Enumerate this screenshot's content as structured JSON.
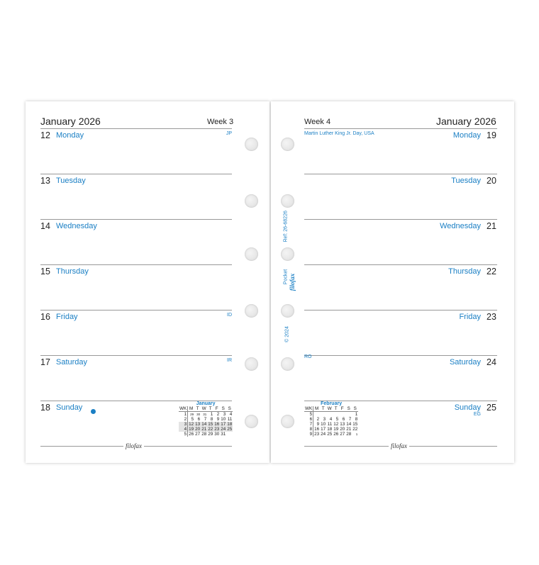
{
  "left": {
    "month": "January 2026",
    "week": "Week 3",
    "days": [
      {
        "num": "12",
        "name": "Monday",
        "note": "JP"
      },
      {
        "num": "13",
        "name": "Tuesday",
        "note": ""
      },
      {
        "num": "14",
        "name": "Wednesday",
        "note": ""
      },
      {
        "num": "15",
        "name": "Thursday",
        "note": ""
      },
      {
        "num": "16",
        "name": "Friday",
        "note": "ID"
      },
      {
        "num": "17",
        "name": "Saturday",
        "note": "IR"
      },
      {
        "num": "18",
        "name": "Sunday",
        "note": ""
      }
    ],
    "calendar": {
      "title": "January",
      "head": [
        "WK",
        "M",
        "T",
        "W",
        "T",
        "F",
        "S",
        "S"
      ],
      "rows": [
        [
          "1",
          "29",
          "30",
          "31",
          "1",
          "2",
          "3",
          "4"
        ],
        [
          "2",
          "5",
          "6",
          "7",
          "8",
          "9",
          "10",
          "11"
        ],
        [
          "3",
          "12",
          "13",
          "14",
          "15",
          "16",
          "17",
          "18"
        ],
        [
          "4",
          "19",
          "20",
          "21",
          "22",
          "23",
          "24",
          "25"
        ],
        [
          "5",
          "26",
          "27",
          "28",
          "29",
          "30",
          "31",
          ""
        ]
      ]
    },
    "logo": "filofax"
  },
  "right": {
    "month": "January 2026",
    "week": "Week 4",
    "days": [
      {
        "num": "19",
        "name": "Monday",
        "note": "Martin Luther King Jr. Day, USA"
      },
      {
        "num": "20",
        "name": "Tuesday",
        "note": ""
      },
      {
        "num": "21",
        "name": "Wednesday",
        "note": ""
      },
      {
        "num": "22",
        "name": "Thursday",
        "note": ""
      },
      {
        "num": "23",
        "name": "Friday",
        "note": ""
      },
      {
        "num": "24",
        "name": "Saturday",
        "note": "RO"
      },
      {
        "num": "25",
        "name": "Sunday",
        "note": "EG"
      }
    ],
    "calendar": {
      "title": "February",
      "head": [
        "WK",
        "M",
        "T",
        "W",
        "T",
        "F",
        "S",
        "S"
      ],
      "rows": [
        [
          "5",
          "",
          "",
          "",
          "",
          "",
          "",
          "1"
        ],
        [
          "6",
          "2",
          "3",
          "4",
          "5",
          "6",
          "7",
          "8"
        ],
        [
          "7",
          "9",
          "10",
          "11",
          "12",
          "13",
          "14",
          "15"
        ],
        [
          "8",
          "16",
          "17",
          "18",
          "19",
          "20",
          "21",
          "22"
        ],
        [
          "9",
          "23",
          "24",
          "25",
          "26",
          "27",
          "28",
          "1"
        ]
      ]
    },
    "logo": "filofax"
  },
  "spine": {
    "ref": "Ref: 26-68226",
    "size": "Pocket",
    "brand": "filofax",
    "copyright": "© 2024"
  },
  "colors": {
    "accent": "#1a7fc4"
  }
}
